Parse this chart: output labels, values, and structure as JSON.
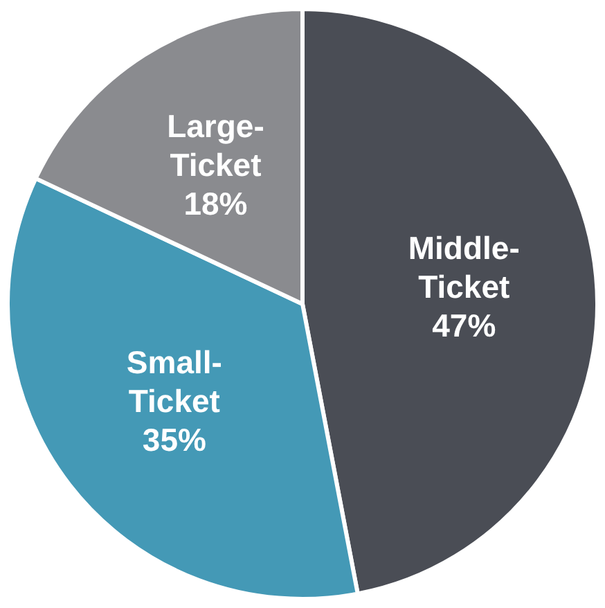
{
  "chart_data": {
    "type": "pie",
    "categories": [
      "Middle-Ticket",
      "Small-Ticket",
      "Large-Ticket"
    ],
    "values": [
      47,
      35,
      18
    ],
    "colors": [
      "#4a4d55",
      "#4499b6",
      "#8a8b8f"
    ],
    "value_labels": [
      "47%",
      "35%",
      "18%"
    ],
    "legend": false
  }
}
